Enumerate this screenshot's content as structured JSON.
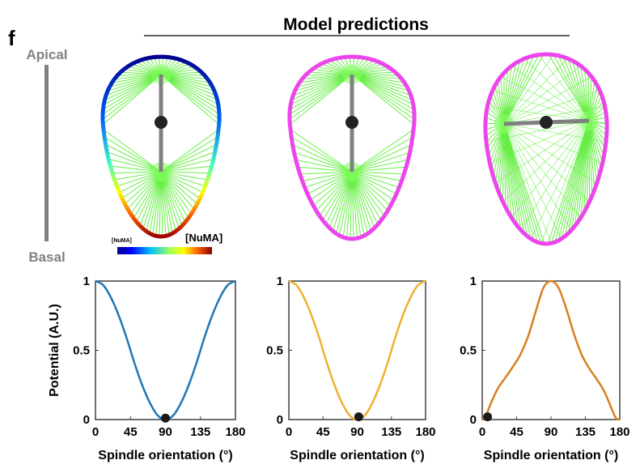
{
  "figure": {
    "panel_label": "f",
    "heading": "Model predictions",
    "axis_top": "Apical",
    "axis_bottom": "Basal",
    "colorbar": {
      "label_small": "[NuMA]",
      "label_large": "[NuMA]",
      "colors": [
        "#00008f",
        "#0000ff",
        "#0060ff",
        "#00c0ff",
        "#40ffc0",
        "#a0ff60",
        "#ffff00",
        "#ffc000",
        "#ff6000",
        "#e00000",
        "#800000"
      ]
    },
    "colors": {
      "spindle": "#808080",
      "centrosome": "#222222",
      "microtubule": "#66ee44",
      "cortex_uniform": "#ee44ee"
    }
  },
  "chart_data": [
    {
      "type": "line",
      "xlabel": "Spindle orientation (°)",
      "ylabel": "Potential (A.U.)",
      "xlim": [
        0,
        180
      ],
      "ylim": [
        0,
        1
      ],
      "xticks": [
        "0",
        "45",
        "90",
        "135",
        "180"
      ],
      "yticks": [
        "0",
        "0.5",
        "1"
      ],
      "color": "#1f77b4",
      "x": [
        0,
        10,
        20,
        30,
        40,
        50,
        60,
        70,
        80,
        90,
        100,
        110,
        120,
        130,
        140,
        150,
        160,
        170,
        180
      ],
      "y": [
        1.0,
        0.97,
        0.88,
        0.75,
        0.59,
        0.41,
        0.25,
        0.12,
        0.03,
        0.0,
        0.03,
        0.12,
        0.25,
        0.41,
        0.59,
        0.75,
        0.88,
        0.97,
        1.0
      ],
      "marker": {
        "x": 90,
        "y": 0.01
      }
    },
    {
      "type": "line",
      "xlabel": "Spindle orientation (°)",
      "ylabel": "",
      "xlim": [
        0,
        180
      ],
      "ylim": [
        0,
        1
      ],
      "xticks": [
        "0",
        "45",
        "90",
        "135",
        "180"
      ],
      "yticks": [
        "0",
        "0.5",
        "1"
      ],
      "color": "#f0b030",
      "x": [
        0,
        10,
        20,
        30,
        40,
        50,
        60,
        70,
        80,
        90,
        100,
        110,
        120,
        130,
        140,
        150,
        160,
        170,
        180
      ],
      "y": [
        1.0,
        0.97,
        0.88,
        0.75,
        0.59,
        0.41,
        0.25,
        0.12,
        0.03,
        0.0,
        0.03,
        0.12,
        0.25,
        0.41,
        0.59,
        0.75,
        0.88,
        0.97,
        1.0
      ],
      "marker": {
        "x": 92,
        "y": 0.02
      }
    },
    {
      "type": "line",
      "xlabel": "Spindle orientation (°)",
      "ylabel": "",
      "xlim": [
        0,
        180
      ],
      "ylim": [
        0,
        1
      ],
      "xticks": [
        "0",
        "45",
        "90",
        "135",
        "180"
      ],
      "yticks": [
        "0",
        "0.5",
        "1"
      ],
      "color": "#d97f1f",
      "x": [
        0,
        5,
        10,
        20,
        30,
        40,
        50,
        60,
        70,
        80,
        90,
        100,
        110,
        120,
        130,
        140,
        150,
        160,
        170,
        175,
        180
      ],
      "y": [
        0.0,
        0.03,
        0.1,
        0.22,
        0.3,
        0.38,
        0.47,
        0.6,
        0.78,
        0.95,
        1.0,
        0.95,
        0.8,
        0.62,
        0.47,
        0.37,
        0.29,
        0.2,
        0.07,
        0.01,
        0.0
      ],
      "marker": {
        "x": 7,
        "y": 0.02
      }
    }
  ]
}
